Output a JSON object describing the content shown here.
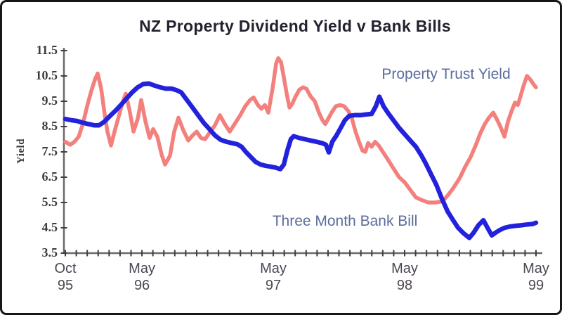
{
  "title": "NZ Property Dividend Yield v Bank Bills",
  "annotations": {
    "property_label": "Property Trust Yield",
    "bank_label": "Three Month Bank Bill"
  },
  "colors": {
    "property_line": "#F3807D",
    "bank_line": "#2222DC",
    "series_label": "#5C6C9C",
    "title_text": "#25202E",
    "axis_line": "#6A6A6A",
    "tick_mark": "#3F3F3F",
    "x_label_text": "#4D4653",
    "y_label_text": "#3C3C3C",
    "border": "#161616"
  },
  "chart_data": {
    "type": "line",
    "title": "NZ Property Dividend Yield v Bank Bills",
    "xlabel": "",
    "ylabel": "Yield",
    "ylim": [
      3.5,
      11.5
    ],
    "y_ticks": [
      3.5,
      4.5,
      5.5,
      6.5,
      7.5,
      8.5,
      9.5,
      10.5,
      11.5
    ],
    "x_unit": "months since Oct 1995",
    "xlim": [
      0,
      43
    ],
    "x_minor_tick_every_months": 1,
    "grid": false,
    "legend_position": "inline-annotations",
    "x_labels": [
      {
        "t": 0,
        "month": "Oct",
        "year": "95"
      },
      {
        "t": 7,
        "month": "May",
        "year": "96"
      },
      {
        "t": 19,
        "month": "May",
        "year": "97"
      },
      {
        "t": 31,
        "month": "May",
        "year": "98"
      },
      {
        "t": 43,
        "month": "May",
        "year": "99"
      }
    ],
    "series": [
      {
        "name": "Property Trust Yield",
        "color": "#F3807D",
        "points": [
          [
            0,
            7.9
          ],
          [
            0.45,
            7.78
          ],
          [
            0.83,
            7.9
          ],
          [
            1.22,
            8.1
          ],
          [
            1.6,
            8.6
          ],
          [
            1.99,
            9.3
          ],
          [
            2.37,
            9.9
          ],
          [
            2.7,
            10.35
          ],
          [
            2.95,
            10.6
          ],
          [
            3.27,
            10.0
          ],
          [
            3.59,
            9.0
          ],
          [
            3.85,
            8.3
          ],
          [
            4.17,
            7.75
          ],
          [
            4.49,
            8.3
          ],
          [
            4.88,
            8.9
          ],
          [
            5.2,
            9.4
          ],
          [
            5.52,
            9.8
          ],
          [
            5.84,
            9.2
          ],
          [
            6.23,
            8.3
          ],
          [
            6.61,
            8.8
          ],
          [
            6.93,
            9.55
          ],
          [
            7.32,
            8.7
          ],
          [
            7.7,
            8.05
          ],
          [
            8.02,
            8.4
          ],
          [
            8.41,
            8.1
          ],
          [
            8.79,
            7.4
          ],
          [
            9.11,
            7.0
          ],
          [
            9.56,
            7.35
          ],
          [
            9.95,
            8.3
          ],
          [
            10.33,
            8.85
          ],
          [
            10.78,
            8.35
          ],
          [
            11.23,
            7.95
          ],
          [
            11.62,
            8.15
          ],
          [
            12.0,
            8.3
          ],
          [
            12.39,
            8.05
          ],
          [
            12.77,
            8.0
          ],
          [
            13.16,
            8.25
          ],
          [
            13.67,
            8.55
          ],
          [
            14.12,
            8.95
          ],
          [
            14.57,
            8.6
          ],
          [
            15.02,
            8.3
          ],
          [
            15.47,
            8.6
          ],
          [
            15.98,
            8.95
          ],
          [
            16.43,
            9.3
          ],
          [
            16.88,
            9.55
          ],
          [
            17.2,
            9.65
          ],
          [
            17.59,
            9.35
          ],
          [
            17.91,
            9.2
          ],
          [
            18.23,
            9.35
          ],
          [
            18.55,
            9.05
          ],
          [
            18.93,
            10.0
          ],
          [
            19.26,
            11.0
          ],
          [
            19.45,
            11.2
          ],
          [
            19.7,
            11.05
          ],
          [
            19.96,
            10.45
          ],
          [
            20.22,
            9.8
          ],
          [
            20.48,
            9.25
          ],
          [
            20.73,
            9.4
          ],
          [
            21.05,
            9.7
          ],
          [
            21.37,
            9.95
          ],
          [
            21.7,
            10.05
          ],
          [
            22.02,
            10.0
          ],
          [
            22.4,
            9.7
          ],
          [
            22.79,
            9.5
          ],
          [
            23.17,
            9.05
          ],
          [
            23.49,
            8.75
          ],
          [
            23.75,
            8.6
          ],
          [
            24.07,
            8.85
          ],
          [
            24.39,
            9.1
          ],
          [
            24.71,
            9.3
          ],
          [
            25.1,
            9.35
          ],
          [
            25.48,
            9.3
          ],
          [
            25.87,
            9.1
          ],
          [
            26.19,
            8.8
          ],
          [
            26.51,
            8.3
          ],
          [
            26.83,
            7.9
          ],
          [
            27.15,
            7.55
          ],
          [
            27.41,
            7.5
          ],
          [
            27.66,
            7.85
          ],
          [
            27.98,
            7.7
          ],
          [
            28.3,
            7.9
          ],
          [
            28.63,
            7.75
          ],
          [
            29.01,
            7.5
          ],
          [
            29.46,
            7.2
          ],
          [
            29.97,
            6.85
          ],
          [
            30.49,
            6.5
          ],
          [
            31.0,
            6.3
          ],
          [
            31.51,
            6.0
          ],
          [
            32.03,
            5.7
          ],
          [
            32.54,
            5.6
          ],
          [
            33.18,
            5.5
          ],
          [
            33.82,
            5.5
          ],
          [
            34.47,
            5.55
          ],
          [
            34.98,
            5.8
          ],
          [
            35.49,
            6.1
          ],
          [
            36.01,
            6.45
          ],
          [
            36.52,
            6.9
          ],
          [
            37.03,
            7.3
          ],
          [
            37.48,
            7.75
          ],
          [
            37.93,
            8.25
          ],
          [
            38.32,
            8.6
          ],
          [
            38.7,
            8.85
          ],
          [
            39.09,
            9.05
          ],
          [
            39.47,
            8.75
          ],
          [
            39.79,
            8.45
          ],
          [
            40.12,
            8.1
          ],
          [
            40.44,
            8.7
          ],
          [
            40.76,
            9.1
          ],
          [
            41.08,
            9.45
          ],
          [
            41.33,
            9.35
          ],
          [
            41.59,
            9.7
          ],
          [
            41.85,
            10.1
          ],
          [
            42.17,
            10.5
          ],
          [
            42.49,
            10.35
          ],
          [
            42.81,
            10.15
          ],
          [
            43.0,
            10.05
          ]
        ]
      },
      {
        "name": "Three Month Bank Bill",
        "color": "#2222DC",
        "points": [
          [
            0,
            8.8
          ],
          [
            0.58,
            8.75
          ],
          [
            1.09,
            8.72
          ],
          [
            1.6,
            8.65
          ],
          [
            2.12,
            8.6
          ],
          [
            2.63,
            8.55
          ],
          [
            3.08,
            8.55
          ],
          [
            3.53,
            8.68
          ],
          [
            4.04,
            8.9
          ],
          [
            4.56,
            9.12
          ],
          [
            5.07,
            9.35
          ],
          [
            5.58,
            9.6
          ],
          [
            6.1,
            9.85
          ],
          [
            6.61,
            10.05
          ],
          [
            7.12,
            10.18
          ],
          [
            7.64,
            10.2
          ],
          [
            8.15,
            10.12
          ],
          [
            8.66,
            10.05
          ],
          [
            9.18,
            10.0
          ],
          [
            9.69,
            10.0
          ],
          [
            10.2,
            9.93
          ],
          [
            10.59,
            9.85
          ],
          [
            11.1,
            9.55
          ],
          [
            11.62,
            9.25
          ],
          [
            12.13,
            8.95
          ],
          [
            12.64,
            8.65
          ],
          [
            13.16,
            8.4
          ],
          [
            13.67,
            8.15
          ],
          [
            14.18,
            7.98
          ],
          [
            14.7,
            7.9
          ],
          [
            15.21,
            7.85
          ],
          [
            15.72,
            7.8
          ],
          [
            16.11,
            7.7
          ],
          [
            16.49,
            7.5
          ],
          [
            16.94,
            7.3
          ],
          [
            17.39,
            7.1
          ],
          [
            17.84,
            7.0
          ],
          [
            18.29,
            6.95
          ],
          [
            18.74,
            6.92
          ],
          [
            19.19,
            6.88
          ],
          [
            19.64,
            6.82
          ],
          [
            19.96,
            7.0
          ],
          [
            20.28,
            7.55
          ],
          [
            20.6,
            8.0
          ],
          [
            20.86,
            8.12
          ],
          [
            21.37,
            8.05
          ],
          [
            21.88,
            8.0
          ],
          [
            22.4,
            7.95
          ],
          [
            22.91,
            7.9
          ],
          [
            23.43,
            7.85
          ],
          [
            23.81,
            7.78
          ],
          [
            24.07,
            7.48
          ],
          [
            24.39,
            7.9
          ],
          [
            24.77,
            8.15
          ],
          [
            25.16,
            8.45
          ],
          [
            25.54,
            8.75
          ],
          [
            25.93,
            8.92
          ],
          [
            26.44,
            8.95
          ],
          [
            26.96,
            8.95
          ],
          [
            27.47,
            8.98
          ],
          [
            27.98,
            9.0
          ],
          [
            28.37,
            9.3
          ],
          [
            28.69,
            9.68
          ],
          [
            29.07,
            9.3
          ],
          [
            29.46,
            9.05
          ],
          [
            29.97,
            8.75
          ],
          [
            30.49,
            8.45
          ],
          [
            31.0,
            8.2
          ],
          [
            31.51,
            7.95
          ],
          [
            32.03,
            7.7
          ],
          [
            32.54,
            7.35
          ],
          [
            32.92,
            7.05
          ],
          [
            33.37,
            6.65
          ],
          [
            33.89,
            6.2
          ],
          [
            34.4,
            5.65
          ],
          [
            34.92,
            5.15
          ],
          [
            35.43,
            4.8
          ],
          [
            35.88,
            4.5
          ],
          [
            36.39,
            4.28
          ],
          [
            36.9,
            4.1
          ],
          [
            37.29,
            4.3
          ],
          [
            37.74,
            4.6
          ],
          [
            38.19,
            4.8
          ],
          [
            38.57,
            4.5
          ],
          [
            38.96,
            4.2
          ],
          [
            39.34,
            4.32
          ],
          [
            39.73,
            4.42
          ],
          [
            40.12,
            4.5
          ],
          [
            40.63,
            4.55
          ],
          [
            41.14,
            4.58
          ],
          [
            41.65,
            4.6
          ],
          [
            42.17,
            4.63
          ],
          [
            42.68,
            4.65
          ],
          [
            43.0,
            4.7
          ]
        ]
      }
    ]
  }
}
